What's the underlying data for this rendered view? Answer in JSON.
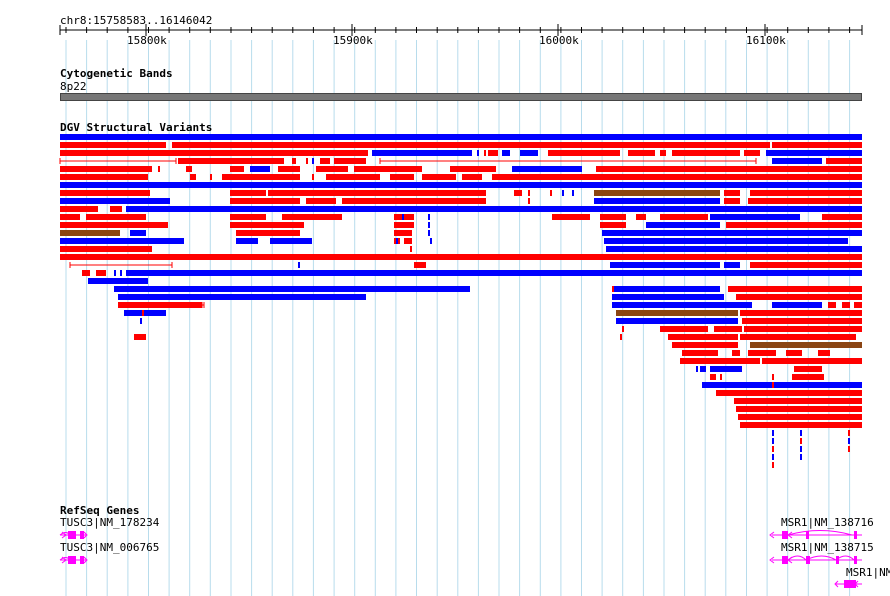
{
  "ruler": {
    "location": "chr8:15758583..16146042",
    "ticks": [
      "15800k",
      "15900k",
      "16000k",
      "16100k"
    ]
  },
  "cytoband": {
    "title": "Cytogenetic Bands",
    "band": "8p22",
    "color": "#777777"
  },
  "dgv": {
    "title": "DGV Structural Variants",
    "colors": {
      "loss": "#ff0000",
      "gain": "#0000ff",
      "inversion": "#8b4513"
    }
  },
  "genes": {
    "title": "RefSeq Genes",
    "color": "#ff00ff",
    "items": [
      {
        "label": "TUSC3|NM_178234"
      },
      {
        "label": "TUSC3|NM_006765"
      },
      {
        "label": "MSR1|NM_138716"
      },
      {
        "label": "MSR1|NM_138715"
      },
      {
        "label": "MSR1|NM_"
      }
    ]
  }
}
